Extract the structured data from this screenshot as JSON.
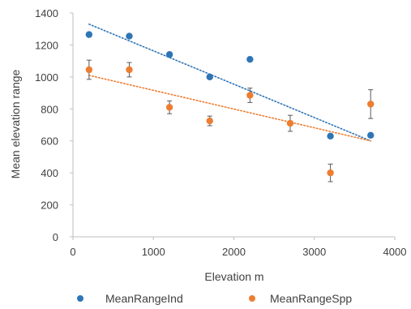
{
  "chart_data": {
    "type": "scatter",
    "title": "",
    "xlabel": "Elevation m",
    "ylabel": "Mean elevation range",
    "xlim": [
      0,
      4000
    ],
    "ylim": [
      0,
      1400
    ],
    "xticks": [
      0,
      1000,
      2000,
      3000,
      4000
    ],
    "yticks": [
      0,
      200,
      400,
      600,
      800,
      1000,
      1200,
      1400
    ],
    "grid": false,
    "legend_position": "bottom",
    "series": [
      {
        "name": "MeanRangeInd",
        "color": "#2E75B6",
        "points": [
          {
            "x": 200,
            "y": 1265
          },
          {
            "x": 700,
            "y": 1255
          },
          {
            "x": 1200,
            "y": 1140
          },
          {
            "x": 1700,
            "y": 1000
          },
          {
            "x": 2200,
            "y": 1110
          },
          {
            "x": 3200,
            "y": 630
          },
          {
            "x": 3700,
            "y": 635
          }
        ],
        "trendline": {
          "x": [
            200,
            3700
          ],
          "y": [
            1330,
            600
          ],
          "style": "dotted"
        }
      },
      {
        "name": "MeanRangeSpp",
        "color": "#ED7D31",
        "points": [
          {
            "x": 200,
            "y": 1045,
            "err": 60
          },
          {
            "x": 700,
            "y": 1045,
            "err": 45
          },
          {
            "x": 1200,
            "y": 810,
            "err": 40
          },
          {
            "x": 1700,
            "y": 725,
            "err": 30
          },
          {
            "x": 2200,
            "y": 885,
            "err": 45
          },
          {
            "x": 2700,
            "y": 710,
            "err": 50
          },
          {
            "x": 3200,
            "y": 400,
            "err": 55
          },
          {
            "x": 3700,
            "y": 830,
            "err": 90
          }
        ],
        "trendline": {
          "x": [
            200,
            3700
          ],
          "y": [
            1010,
            600
          ],
          "style": "dotted"
        }
      }
    ]
  }
}
